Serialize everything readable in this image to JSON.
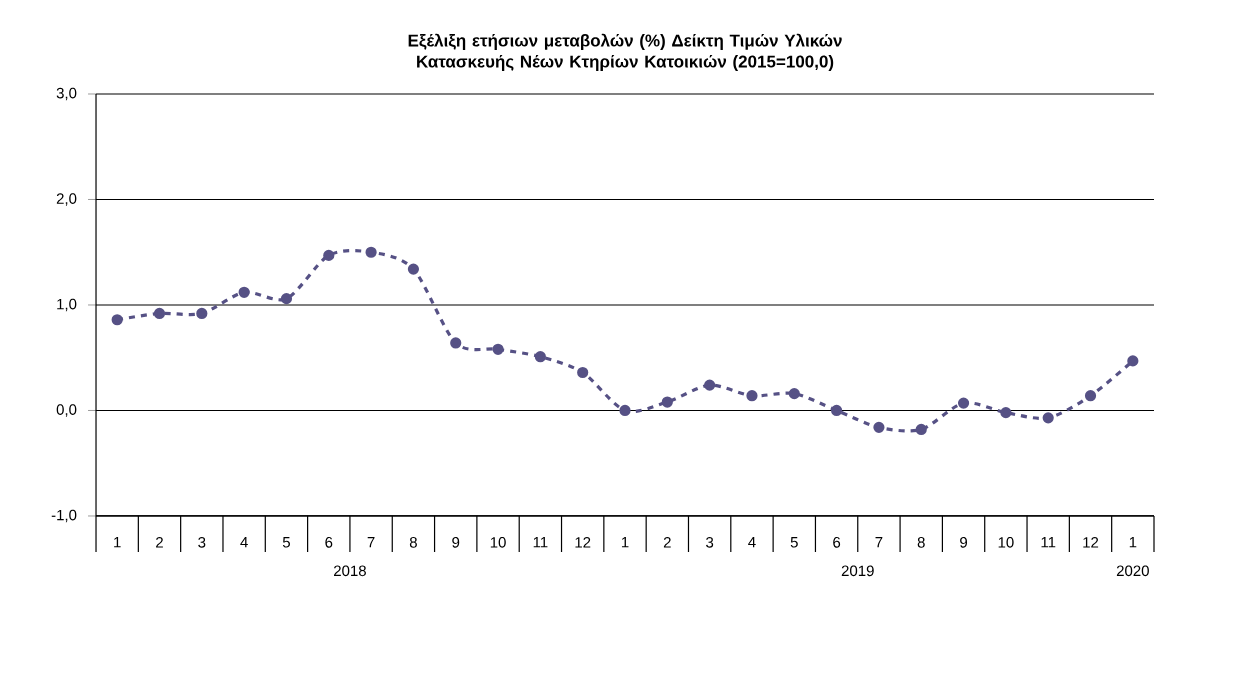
{
  "chart_data": {
    "type": "line",
    "title": "Εξέλιξη ετήσιων μεταβολών (%) Δείκτη Τιμών Υλικών Κατασκευής Νέων Κτηρίων Κατοικιών (2015=100,0)",
    "categories": [
      "1",
      "2",
      "3",
      "4",
      "5",
      "6",
      "7",
      "8",
      "9",
      "10",
      "11",
      "12",
      "1",
      "2",
      "3",
      "4",
      "5",
      "6",
      "7",
      "8",
      "9",
      "10",
      "11",
      "12",
      "1"
    ],
    "series": [
      {
        "color": "#565185",
        "values": [
          0.86,
          0.92,
          0.92,
          1.12,
          1.06,
          1.47,
          1.5,
          1.34,
          0.64,
          0.58,
          0.51,
          0.36,
          0.0,
          0.08,
          0.24,
          0.14,
          0.16,
          0.0,
          -0.16,
          -0.18,
          0.07,
          -0.02,
          -0.07,
          0.14,
          0.47
        ]
      }
    ],
    "annotations": [
      "2018",
      "2019",
      "2020"
    ],
    "ylim": [
      -1,
      3
    ],
    "yticks": [
      {
        "value": -1,
        "label": "-1,0"
      },
      {
        "value": 0,
        "label": "0,0"
      },
      {
        "value": 1,
        "label": "1,0"
      },
      {
        "value": 2,
        "label": "2,0"
      },
      {
        "value": 3,
        "label": "3,0"
      }
    ],
    "grid": "y",
    "marker": "circle",
    "line_style": "dashed"
  }
}
